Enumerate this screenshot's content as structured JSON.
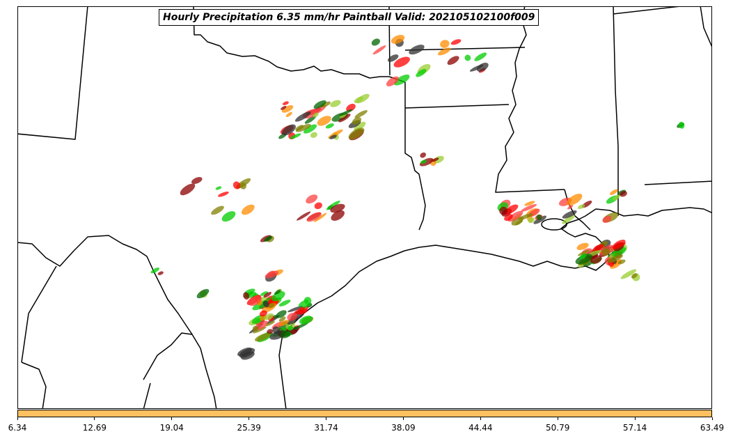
{
  "title": "Hourly Precipitation 6.35 mm/hr Paintball Valid: 202105102100f009",
  "colorbar": {
    "fill_color": "#FFC060",
    "ticks": [
      "6.34",
      "12.69",
      "19.04",
      "25.39",
      "31.74",
      "38.09",
      "44.44",
      "50.79",
      "57.14",
      "63.49"
    ]
  },
  "member_colors": [
    "#FF0000",
    "#FF8C00",
    "#8B0000",
    "#808000",
    "#006400",
    "#00CC00",
    "#2F2F2F",
    "#FF4040",
    "#9ACD32"
  ],
  "map": {
    "region": "Texas and Gulf Coast",
    "borders": "state and international boundaries, coastline"
  }
}
